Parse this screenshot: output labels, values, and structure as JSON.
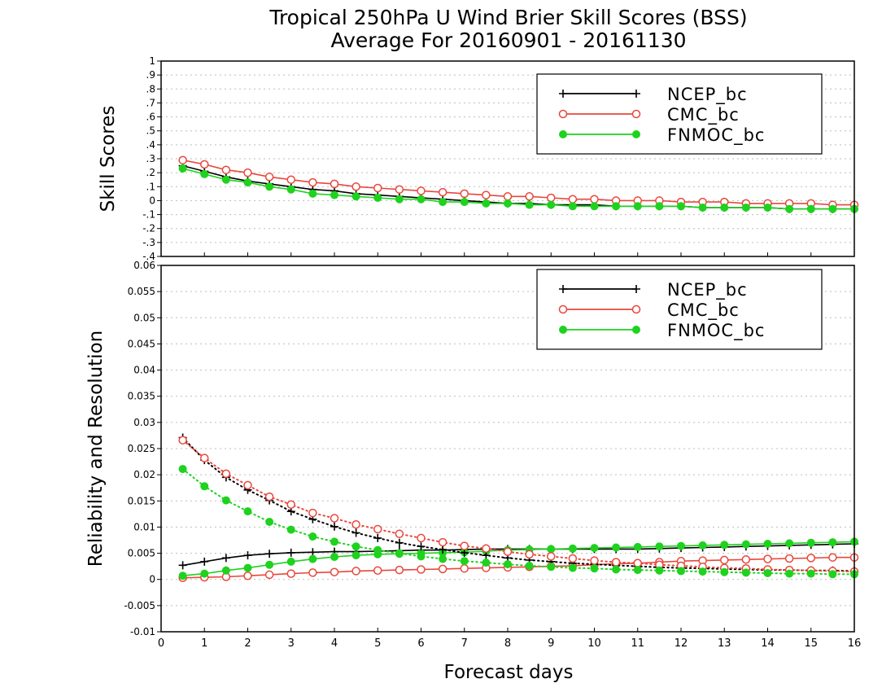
{
  "title_line1": "Tropical 250hPa U Wind Brier Skill Scores (BSS)",
  "title_line2": "Average For 20160901 - 20161130",
  "xlabel": "Forecast days",
  "colors": {
    "ncep": "#000000",
    "cmc": "#e8473c",
    "fnmoc": "#1ed21e",
    "grid": "#bdbdbd"
  },
  "chart_data": [
    {
      "type": "line",
      "ylabel": "Skill Scores",
      "xlim": [
        0,
        16
      ],
      "ylim": [
        -0.4,
        1
      ],
      "x_ticks": [
        0,
        1,
        2,
        3,
        4,
        5,
        6,
        7,
        8,
        9,
        10,
        11,
        12,
        13,
        14,
        15,
        16
      ],
      "y_ticks": [
        -0.4,
        -0.3,
        -0.2,
        -0.1,
        0,
        0.1,
        0.2,
        0.3,
        0.4,
        0.5,
        0.6,
        0.7,
        0.8,
        0.9,
        1
      ],
      "grid": true,
      "legend": {
        "position": "top-right",
        "entries": [
          "NCEP_bc",
          "CMC_bc",
          "FNMOC_bc"
        ]
      },
      "x": [
        0.5,
        1,
        1.5,
        2,
        2.5,
        3,
        3.5,
        4,
        4.5,
        5,
        5.5,
        6,
        6.5,
        7,
        7.5,
        8,
        8.5,
        9,
        9.5,
        10,
        10.5,
        11,
        11.5,
        12,
        12.5,
        13,
        13.5,
        14,
        14.5,
        15,
        15.5,
        16
      ],
      "series": [
        {
          "name": "NCEP_bc",
          "marker": "plus",
          "style": "solid",
          "values": [
            0.25,
            0.21,
            0.17,
            0.14,
            0.12,
            0.1,
            0.08,
            0.07,
            0.05,
            0.04,
            0.03,
            0.02,
            0.01,
            0.0,
            -0.01,
            -0.02,
            -0.02,
            -0.03,
            -0.03,
            -0.03,
            -0.04,
            -0.04,
            -0.04,
            -0.04,
            -0.05,
            -0.05,
            -0.05,
            -0.05,
            -0.06,
            -0.06,
            -0.06,
            -0.06
          ]
        },
        {
          "name": "CMC_bc",
          "marker": "circle-open",
          "style": "solid",
          "values": [
            0.29,
            0.26,
            0.22,
            0.2,
            0.17,
            0.15,
            0.13,
            0.12,
            0.1,
            0.09,
            0.08,
            0.07,
            0.06,
            0.05,
            0.04,
            0.03,
            0.03,
            0.02,
            0.01,
            0.01,
            0.0,
            0.0,
            0.0,
            -0.01,
            -0.01,
            -0.01,
            -0.02,
            -0.02,
            -0.02,
            -0.02,
            -0.03,
            -0.03
          ]
        },
        {
          "name": "FNMOC_bc",
          "marker": "circle-filled",
          "style": "solid",
          "values": [
            0.23,
            0.19,
            0.15,
            0.13,
            0.1,
            0.08,
            0.05,
            0.04,
            0.03,
            0.02,
            0.01,
            0.01,
            -0.01,
            -0.01,
            -0.02,
            -0.02,
            -0.03,
            -0.03,
            -0.04,
            -0.04,
            -0.04,
            -0.04,
            -0.04,
            -0.04,
            -0.05,
            -0.05,
            -0.05,
            -0.05,
            -0.06,
            -0.06,
            -0.06,
            -0.06
          ]
        }
      ]
    },
    {
      "type": "line",
      "ylabel": "Reliability and Resolution",
      "xlim": [
        0,
        16
      ],
      "ylim": [
        -0.01,
        0.06
      ],
      "x_ticks": [
        0,
        1,
        2,
        3,
        4,
        5,
        6,
        7,
        8,
        9,
        10,
        11,
        12,
        13,
        14,
        15,
        16
      ],
      "x_tick_labels": [
        "0",
        "1",
        "2",
        "3",
        "4",
        "5",
        "6",
        "7",
        "8",
        "9",
        "10",
        "11",
        "12",
        "13",
        "14",
        "15",
        "16"
      ],
      "y_ticks": [
        -0.01,
        -0.005,
        0,
        0.005,
        0.01,
        0.015,
        0.02,
        0.025,
        0.03,
        0.035,
        0.04,
        0.045,
        0.05,
        0.055,
        0.06
      ],
      "y_tick_labels": [
        "-0.01",
        "-0.005",
        "0",
        "0.005",
        "0.01",
        "0.015",
        "0.02",
        "0.025",
        "0.03",
        "0.035",
        "0.04",
        "0.045",
        "0.05",
        "0.055",
        "0.06"
      ],
      "grid": true,
      "legend": {
        "position": "top-right",
        "entries": [
          "NCEP_bc",
          "CMC_bc",
          "FNMOC_bc"
        ]
      },
      "x": [
        0.5,
        1,
        1.5,
        2,
        2.5,
        3,
        3.5,
        4,
        4.5,
        5,
        5.5,
        6,
        6.5,
        7,
        7.5,
        8,
        8.5,
        9,
        9.5,
        10,
        10.5,
        11,
        11.5,
        12,
        12.5,
        13,
        13.5,
        14,
        14.5,
        15,
        15.5,
        16
      ],
      "series": [
        {
          "name": "NCEP_bc",
          "marker": "plus",
          "style": "solid",
          "quantity": "resolution",
          "values": [
            0.0027,
            0.0034,
            0.0041,
            0.0046,
            0.0049,
            0.0051,
            0.0052,
            0.0053,
            0.0053,
            0.0054,
            0.0055,
            0.0056,
            0.0056,
            0.0057,
            0.0058,
            0.0058,
            0.0058,
            0.0058,
            0.0058,
            0.0058,
            0.0058,
            0.0058,
            0.0059,
            0.006,
            0.0061,
            0.0062,
            0.0063,
            0.0064,
            0.0065,
            0.0066,
            0.0067,
            0.0068
          ]
        },
        {
          "name": "CMC_bc",
          "marker": "circle-open",
          "style": "solid",
          "quantity": "resolution",
          "values": [
            0.0003,
            0.0004,
            0.0005,
            0.0007,
            0.0009,
            0.0011,
            0.0013,
            0.0014,
            0.0016,
            0.0017,
            0.0018,
            0.0019,
            0.002,
            0.0021,
            0.0022,
            0.0023,
            0.0024,
            0.0025,
            0.0026,
            0.0028,
            0.003,
            0.0031,
            0.0033,
            0.0035,
            0.0036,
            0.0037,
            0.0038,
            0.0039,
            0.004,
            0.0041,
            0.0042,
            0.0042
          ]
        },
        {
          "name": "FNMOC_bc",
          "marker": "circle-filled",
          "style": "solid",
          "quantity": "resolution",
          "values": [
            0.0007,
            0.0011,
            0.0017,
            0.0022,
            0.0028,
            0.0034,
            0.0039,
            0.0043,
            0.0046,
            0.0048,
            0.0049,
            0.005,
            0.0051,
            0.0052,
            0.0054,
            0.0056,
            0.0057,
            0.0058,
            0.0059,
            0.006,
            0.0061,
            0.0062,
            0.0063,
            0.0064,
            0.0065,
            0.0066,
            0.0067,
            0.0068,
            0.0069,
            0.007,
            0.0071,
            0.0072
          ]
        },
        {
          "name": "NCEP_bc",
          "marker": "plus",
          "style": "dotted",
          "quantity": "reliability",
          "values": [
            0.0271,
            0.0228,
            0.0195,
            0.0171,
            0.0151,
            0.013,
            0.0115,
            0.0101,
            0.0089,
            0.0079,
            0.007,
            0.0063,
            0.0057,
            0.0051,
            0.0046,
            0.0041,
            0.0037,
            0.0034,
            0.0031,
            0.0029,
            0.0027,
            0.0025,
            0.0023,
            0.0022,
            0.0021,
            0.002,
            0.0019,
            0.0018,
            0.0018,
            0.0017,
            0.0017,
            0.0016
          ]
        },
        {
          "name": "CMC_bc",
          "marker": "circle-open",
          "style": "dotted",
          "quantity": "reliability",
          "values": [
            0.0266,
            0.0232,
            0.0202,
            0.018,
            0.0158,
            0.0143,
            0.0127,
            0.0117,
            0.0105,
            0.0096,
            0.0087,
            0.0079,
            0.0071,
            0.0064,
            0.0059,
            0.0053,
            0.0048,
            0.0044,
            0.004,
            0.0036,
            0.0033,
            0.0031,
            0.0028,
            0.0026,
            0.0024,
            0.0022,
            0.0021,
            0.0019,
            0.0018,
            0.0017,
            0.0016,
            0.0015
          ]
        },
        {
          "name": "FNMOC_bc",
          "marker": "circle-filled",
          "style": "dotted",
          "quantity": "reliability",
          "values": [
            0.0211,
            0.0178,
            0.0151,
            0.013,
            0.011,
            0.0095,
            0.0082,
            0.0072,
            0.0063,
            0.0056,
            0.005,
            0.0044,
            0.0039,
            0.0035,
            0.0032,
            0.0029,
            0.0026,
            0.0024,
            0.0022,
            0.0021,
            0.0019,
            0.0018,
            0.0017,
            0.0016,
            0.0015,
            0.0014,
            0.0013,
            0.0012,
            0.0011,
            0.0011,
            0.001,
            0.001
          ]
        }
      ]
    }
  ]
}
